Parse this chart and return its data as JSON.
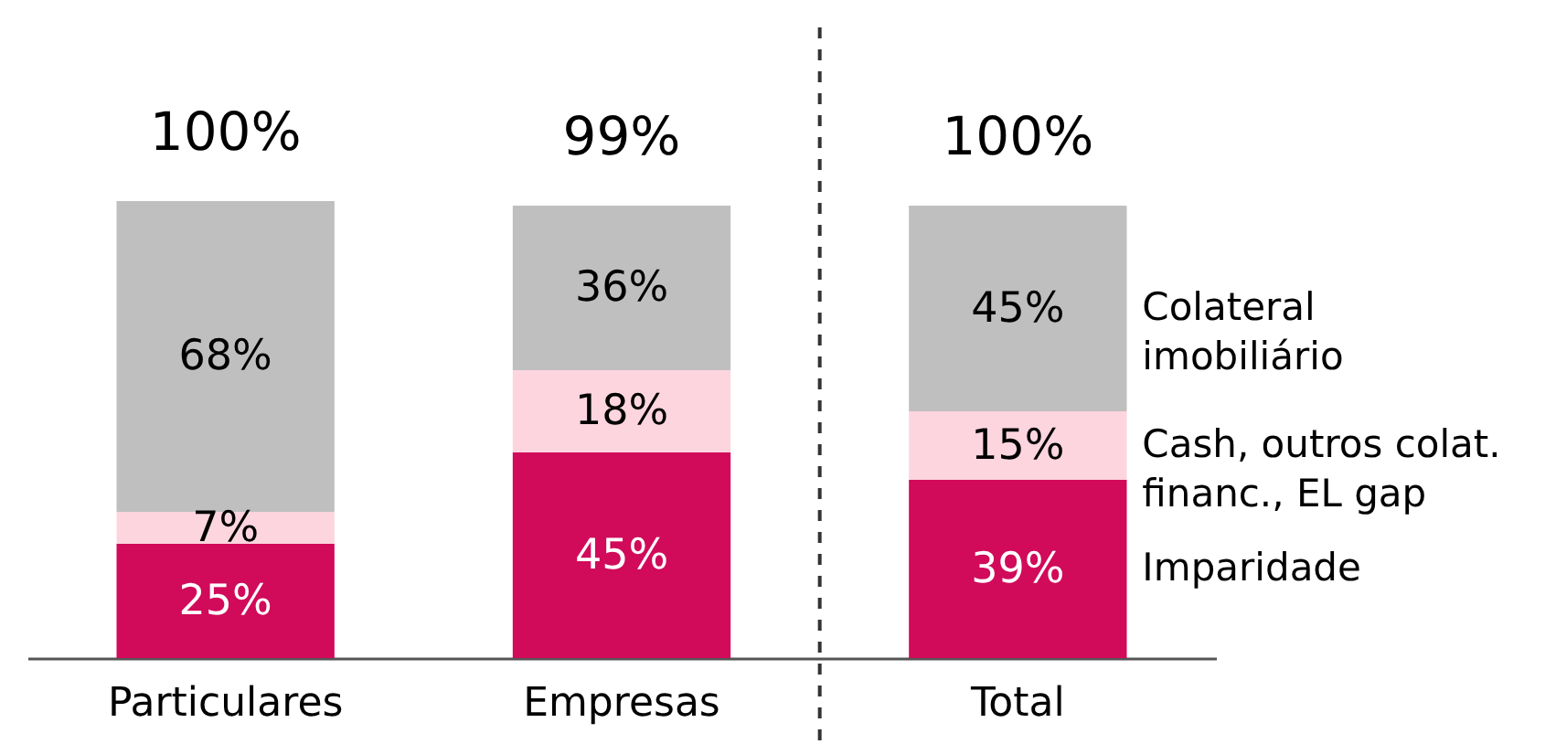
{
  "chart_data": {
    "type": "bar",
    "stacked": true,
    "legend": "right",
    "categories": [
      "Particulares",
      "Empresas",
      "Total"
    ],
    "series": [
      {
        "name": "Imparidade",
        "color": "#d10a5a",
        "values": [
          25,
          45,
          39
        ],
        "value_labels": [
          "25%",
          "45%",
          "39%"
        ]
      },
      {
        "name": "Cash, outros colat. financ., EL gap",
        "color": "#fcd5df",
        "values": [
          7,
          18,
          15
        ],
        "value_labels": [
          "7%",
          "18%",
          "15%"
        ]
      },
      {
        "name": "Colateral imobiliário",
        "color": "#bfbfbf",
        "values": [
          68,
          36,
          45
        ],
        "value_labels": [
          "68%",
          "36%",
          "45%"
        ]
      }
    ],
    "totals": [
      "100%",
      "99%",
      "100%"
    ]
  }
}
